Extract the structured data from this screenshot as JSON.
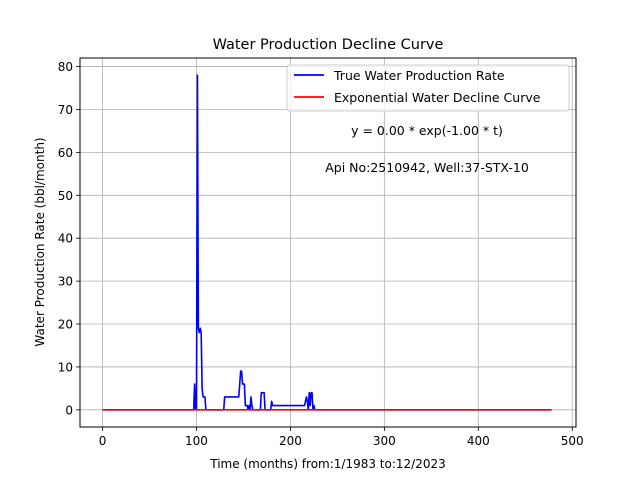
{
  "chart_data": {
    "type": "line",
    "title": "Water Production Decline Curve",
    "xlabel": "Time (months) from:1/1983 to:12/2023",
    "ylabel": "Water Production Rate (bbl/month)",
    "xlim": [
      -24,
      504
    ],
    "ylim": [
      -4,
      82
    ],
    "xticks": [
      0,
      100,
      200,
      300,
      400,
      500
    ],
    "yticks": [
      0,
      10,
      20,
      30,
      40,
      50,
      60,
      70,
      80
    ],
    "grid": true,
    "legend_position": "top-right",
    "annotations": [
      "y = 0.00 * exp(-1.00 * t)",
      "Api No:2510942, Well:37-STX-10"
    ],
    "series": [
      {
        "name": "True Water Production Rate",
        "color": "#0000ff",
        "points": [
          [
            0,
            0
          ],
          [
            97,
            0
          ],
          [
            98,
            6
          ],
          [
            99,
            0
          ],
          [
            100,
            0
          ],
          [
            101,
            78
          ],
          [
            102,
            19
          ],
          [
            103,
            18
          ],
          [
            104,
            19
          ],
          [
            105,
            18
          ],
          [
            106,
            5
          ],
          [
            107,
            3
          ],
          [
            108,
            3
          ],
          [
            109,
            3
          ],
          [
            110,
            0
          ],
          [
            129,
            0
          ],
          [
            130,
            3
          ],
          [
            145,
            3
          ],
          [
            146,
            6
          ],
          [
            147,
            9
          ],
          [
            148,
            9
          ],
          [
            149,
            6
          ],
          [
            151,
            6
          ],
          [
            152,
            1
          ],
          [
            154,
            1
          ],
          [
            155,
            0
          ],
          [
            156,
            1
          ],
          [
            157,
            0
          ],
          [
            158,
            3
          ],
          [
            159,
            1
          ],
          [
            160,
            0
          ],
          [
            168,
            0
          ],
          [
            169,
            4
          ],
          [
            172,
            4
          ],
          [
            173,
            0
          ],
          [
            179,
            0
          ],
          [
            180,
            2
          ],
          [
            181,
            1
          ],
          [
            200,
            1
          ],
          [
            201,
            1
          ],
          [
            215,
            1
          ],
          [
            216,
            2
          ],
          [
            217,
            3
          ],
          [
            218,
            2
          ],
          [
            219,
            0
          ],
          [
            220,
            4
          ],
          [
            221,
            1
          ],
          [
            222,
            4
          ],
          [
            223,
            4
          ],
          [
            224,
            0
          ],
          [
            225,
            1
          ],
          [
            226,
            0
          ],
          [
            478,
            0
          ]
        ]
      },
      {
        "name": "Exponential Water Decline Curve",
        "color": "#ff0000",
        "points": [
          [
            0,
            0
          ],
          [
            478,
            0
          ]
        ]
      }
    ]
  }
}
